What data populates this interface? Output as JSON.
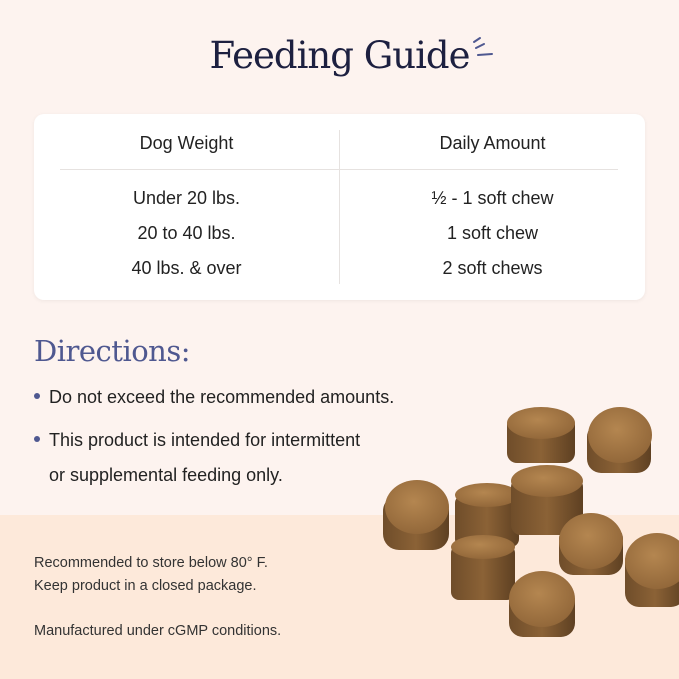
{
  "title": "Feeding Guide",
  "table": {
    "headers": [
      "Dog Weight",
      "Daily Amount"
    ],
    "rows": [
      [
        "Under 20 lbs.",
        "½ - 1 soft chew"
      ],
      [
        "20 to 40 lbs.",
        "1 soft chew"
      ],
      [
        "40 lbs. & over",
        "2 soft chews"
      ]
    ]
  },
  "directions": {
    "heading": "Directions:",
    "items": [
      "Do not exceed the recommended amounts.",
      "This product is intended for intermittent",
      "or supplemental feeding only."
    ]
  },
  "notes": [
    "Recommended to store below 80° F.",
    "Keep product in a closed package.",
    "Manufactured under cGMP conditions."
  ],
  "colors": {
    "title": "#1d2040",
    "accent": "#4f5890",
    "background_top": "#fdf3ef",
    "background_bottom": "#fde9da",
    "chew": "#9a7040"
  }
}
